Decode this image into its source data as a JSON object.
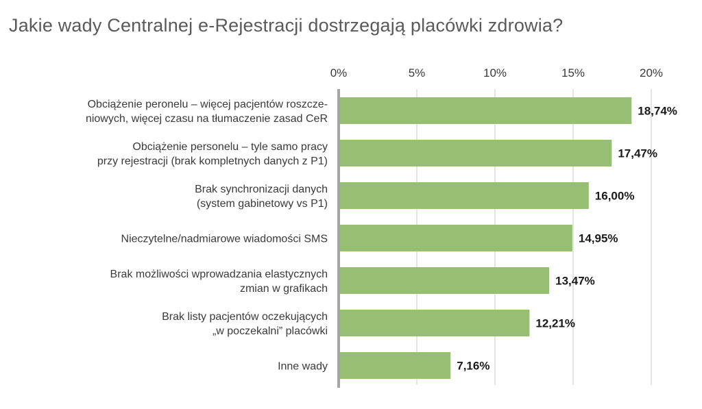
{
  "chart_data": {
    "type": "bar",
    "orientation": "horizontal",
    "title": "Jakie wady Centralnej e-Rejestracji dostrzegają placówki zdrowia?",
    "xlabel": "",
    "ylabel": "",
    "xlim": [
      0,
      20
    ],
    "ticks": [
      0,
      5,
      10,
      15,
      20
    ],
    "tick_labels": [
      "0%",
      "5%",
      "10%",
      "15%",
      "20%"
    ],
    "grid": true,
    "categories": [
      [
        "Obciążenie peronelu – więcej pacjentów roszcze-",
        "niowych, więcej czasu na tłumaczenie zasad CeR"
      ],
      [
        "Obciążenie personelu – tyle samo pracy",
        "przy rejestracji (brak kompletnych danych z P1)"
      ],
      [
        "Brak synchronizacji danych",
        "(system gabinetowy vs P1)"
      ],
      [
        "Nieczytelne/nadmiarowe wiadomości SMS"
      ],
      [
        "Brak możliwości wprowadzania elastycznych",
        "zmian w grafikach"
      ],
      [
        "Brak listy pacjentów oczekujących",
        "„w poczekalni” placówki"
      ],
      [
        "Inne wady"
      ]
    ],
    "values": [
      18.74,
      17.47,
      16.0,
      14.95,
      13.47,
      12.21,
      7.16
    ],
    "value_labels": [
      "18,74%",
      "17,47%",
      "16,00%",
      "14,95%",
      "13,47%",
      "12,21%",
      "7,16%"
    ],
    "colors": {
      "bar": "#96bf74",
      "grid": "#c8c8c8",
      "axis": "#a6a6a6",
      "text": "#3a3a3a",
      "title": "#5a5a5a"
    }
  }
}
